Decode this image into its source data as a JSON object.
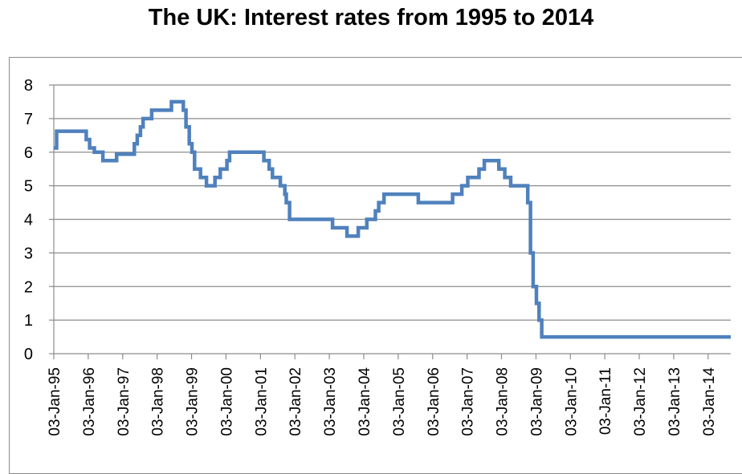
{
  "chart_data": {
    "type": "line",
    "title": "The UK: Interest rates from 1995 to 2014",
    "xlabel": "",
    "ylabel": "",
    "ylim": [
      0,
      8
    ],
    "yticks": [
      "0",
      "1",
      "2",
      "3",
      "4",
      "5",
      "6",
      "7",
      "8"
    ],
    "xticks": [
      "03-Jan-95",
      "03-Jan-96",
      "03-Jan-97",
      "03-Jan-98",
      "03-Jan-99",
      "03-Jan-00",
      "03-Jan-01",
      "03-Jan-02",
      "03-Jan-03",
      "03-Jan-04",
      "03-Jan-05",
      "03-Jan-06",
      "03-Jan-07",
      "03-Jan-08",
      "03-Jan-09",
      "03-Jan-10",
      "03-Jan-11",
      "03-Jan-12",
      "03-Jan-13",
      "03-Jan-14"
    ],
    "grid": "horizontal",
    "line_color": "#4f81bd",
    "series": [
      {
        "name": "",
        "step": true,
        "points": [
          [
            "1995-01-03",
            6.125
          ],
          [
            "1995-02-02",
            6.625
          ],
          [
            "1995-12-13",
            6.375
          ],
          [
            "1996-01-18",
            6.125
          ],
          [
            "1996-03-08",
            6.0
          ],
          [
            "1996-06-06",
            5.75
          ],
          [
            "1996-10-30",
            5.94
          ],
          [
            "1997-05-06",
            6.25
          ],
          [
            "1997-06-06",
            6.5
          ],
          [
            "1997-07-10",
            6.75
          ],
          [
            "1997-08-07",
            7.0
          ],
          [
            "1997-11-06",
            7.25
          ],
          [
            "1998-06-04",
            7.5
          ],
          [
            "1998-10-08",
            7.25
          ],
          [
            "1998-11-05",
            6.75
          ],
          [
            "1998-12-10",
            6.25
          ],
          [
            "1999-01-07",
            6.0
          ],
          [
            "1999-02-04",
            5.5
          ],
          [
            "1999-04-08",
            5.25
          ],
          [
            "1999-06-10",
            5.0
          ],
          [
            "1999-09-08",
            5.25
          ],
          [
            "1999-11-04",
            5.5
          ],
          [
            "2000-01-13",
            5.75
          ],
          [
            "2000-02-10",
            6.0
          ],
          [
            "2001-02-08",
            5.75
          ],
          [
            "2001-04-05",
            5.5
          ],
          [
            "2001-05-10",
            5.25
          ],
          [
            "2001-08-02",
            5.0
          ],
          [
            "2001-09-18",
            4.75
          ],
          [
            "2001-10-04",
            4.5
          ],
          [
            "2001-11-08",
            4.0
          ],
          [
            "2003-02-06",
            3.75
          ],
          [
            "2003-07-10",
            3.5
          ],
          [
            "2003-11-06",
            3.75
          ],
          [
            "2004-02-05",
            4.0
          ],
          [
            "2004-05-06",
            4.25
          ],
          [
            "2004-06-10",
            4.5
          ],
          [
            "2004-08-05",
            4.75
          ],
          [
            "2005-08-04",
            4.5
          ],
          [
            "2006-08-03",
            4.75
          ],
          [
            "2006-11-09",
            5.0
          ],
          [
            "2007-01-11",
            5.25
          ],
          [
            "2007-05-10",
            5.5
          ],
          [
            "2007-07-05",
            5.75
          ],
          [
            "2007-12-06",
            5.5
          ],
          [
            "2008-02-07",
            5.25
          ],
          [
            "2008-04-10",
            5.0
          ],
          [
            "2008-10-08",
            4.5
          ],
          [
            "2008-11-06",
            3.0
          ],
          [
            "2008-12-04",
            2.0
          ],
          [
            "2009-01-08",
            1.5
          ],
          [
            "2009-02-05",
            1.0
          ],
          [
            "2009-03-05",
            0.5
          ],
          [
            "2014-08-31",
            0.5
          ]
        ]
      }
    ]
  }
}
